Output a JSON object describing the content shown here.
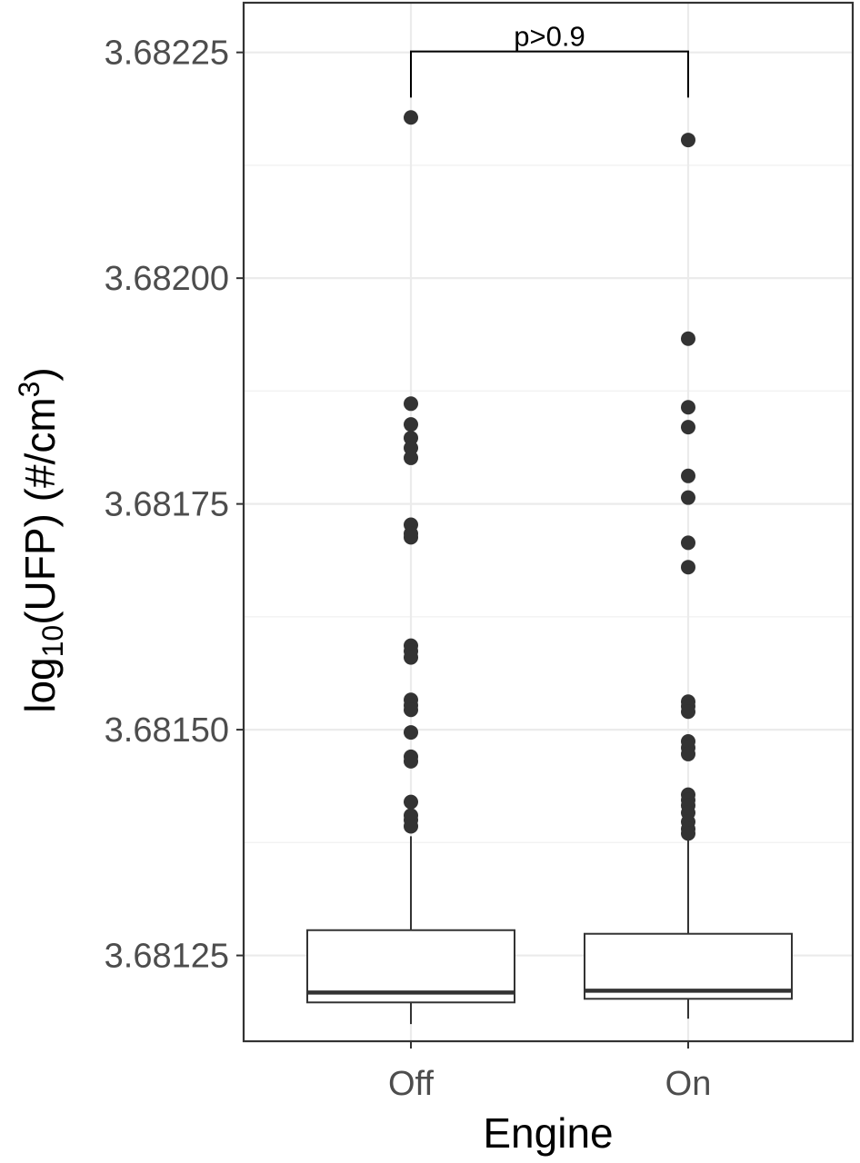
{
  "chart_data": {
    "type": "box",
    "xlabel": "Engine",
    "ylabel": {
      "prefix": "log",
      "sub": "10",
      "middle": "(UFP) (#/cm",
      "sup": "3",
      "suffix": ")"
    },
    "ylim": [
      3.681155,
      3.682305
    ],
    "yticks": [
      "3.68125",
      "3.68150",
      "3.68175",
      "3.68200",
      "3.68225"
    ],
    "yticks_values": [
      3.68125,
      3.6815,
      3.68175,
      3.682,
      3.68225
    ],
    "categories": [
      "Off",
      "On"
    ],
    "grid": true,
    "boxes": [
      {
        "name": "Off",
        "whisker_low": 3.681174,
        "q1": 3.681198,
        "median": 3.681209,
        "q3": 3.681278,
        "whisker_high": 3.681382,
        "outliers": [
          3.682178,
          3.681861,
          3.681838,
          3.681823,
          3.681812,
          3.681801,
          3.681727,
          3.681717,
          3.681713,
          3.681593,
          3.681587,
          3.68158,
          3.681533,
          3.681527,
          3.681522,
          3.681497,
          3.68147,
          3.681465,
          3.68142,
          3.681405,
          3.6814,
          3.681393
        ]
      },
      {
        "name": "On",
        "whisker_low": 3.68118,
        "q1": 3.681202,
        "median": 3.681211,
        "q3": 3.681274,
        "whisker_high": 3.68138,
        "outliers": [
          3.682153,
          3.681933,
          3.681857,
          3.681835,
          3.681781,
          3.681757,
          3.681707,
          3.68168,
          3.681531,
          3.681526,
          3.68152,
          3.681487,
          3.68148,
          3.681473,
          3.681428,
          3.681422,
          3.681416,
          3.681408,
          3.681398,
          3.68139,
          3.681385
        ]
      }
    ],
    "annotations": [
      {
        "text": "p>0.9",
        "between": [
          "Off",
          "On"
        ],
        "y": 3.682251,
        "tip_y": 3.6822
      }
    ],
    "colors": {
      "panel_border": "#333333",
      "grid_major": "#ebebeb",
      "grid_minor": "#f2f2f2",
      "box_line": "#333333",
      "point": "#333333",
      "tick_text": "#4d4d4d"
    }
  }
}
